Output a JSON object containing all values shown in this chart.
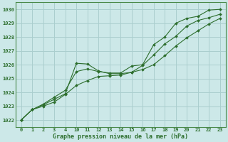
{
  "title": "Graphe pression niveau de la mer (hPa)",
  "bg_color": "#cce8e8",
  "grid_color": "#aacece",
  "line_color": "#2d6e2d",
  "tick_color": "#2d6e2d",
  "xtick_labels": [
    "0",
    "1",
    "2",
    "3",
    "4",
    "10",
    "11",
    "12",
    "13",
    "14",
    "15",
    "16",
    "17",
    "18",
    "19",
    "20",
    "21",
    "22",
    "23"
  ],
  "ytick_labels": [
    "1022",
    "1023",
    "1024",
    "1025",
    "1026",
    "1027",
    "1028",
    "1029",
    "1030"
  ],
  "n_xpoints": 19,
  "series1_y": [
    1022.0,
    1022.75,
    1023.1,
    1023.5,
    1023.9,
    1026.1,
    1026.05,
    1025.55,
    1025.35,
    1025.35,
    1025.45,
    1025.95,
    1026.7,
    1027.5,
    1028.05,
    1028.8,
    1029.2,
    1029.4,
    1029.65
  ],
  "series2_y": [
    1022.0,
    1022.75,
    1023.15,
    1023.65,
    1024.15,
    1025.5,
    1025.7,
    1025.5,
    1025.4,
    1025.4,
    1025.9,
    1026.0,
    1027.45,
    1028.0,
    1029.0,
    1029.35,
    1029.5,
    1029.95,
    1030.0
  ],
  "series3_y": [
    1022.0,
    1022.75,
    1023.0,
    1023.3,
    1023.85,
    1024.5,
    1024.85,
    1025.15,
    1025.2,
    1025.25,
    1025.45,
    1025.65,
    1026.0,
    1026.65,
    1027.35,
    1027.95,
    1028.45,
    1028.95,
    1029.35
  ],
  "ylim": [
    1021.5,
    1030.5
  ],
  "spine_color": "#4a8a4a"
}
